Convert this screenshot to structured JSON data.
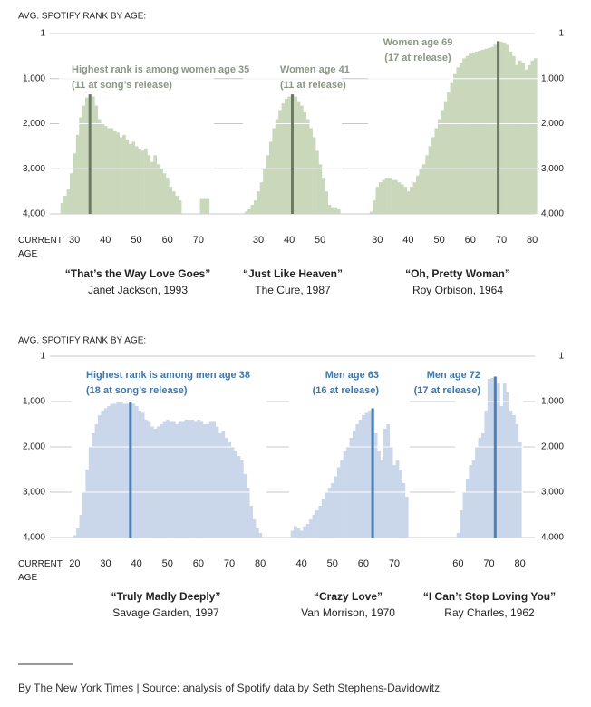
{
  "chart_data": [
    {
      "type": "bar",
      "y_label": "AVG. SPOTIFY RANK BY AGE:",
      "x_label": "CURRENT AGE",
      "ylim": [
        4000,
        1
      ],
      "yticks": [
        1,
        {
          "value": 1000,
          "label": "1,000"
        },
        {
          "value": 2000,
          "label": "2,000"
        },
        {
          "value": 3000,
          "label": "3,000"
        },
        {
          "value": 4000,
          "label": "4,000"
        }
      ],
      "color": "#c9d7bb",
      "highlight_color": "#6c7b63",
      "annotation_color": "#8b9684",
      "charts": [
        {
          "title": "“That’s the Way Love Goes”",
          "subtitle": "Janet Jackson, 1993",
          "annotation": [
            "Highest rank is among women age 35",
            "(11 at song’s release)"
          ],
          "highlight": 35,
          "xlim": [
            25,
            75
          ],
          "xticks": [
            30,
            40,
            50,
            60,
            70
          ],
          "x": [
            26,
            27,
            28,
            29,
            30,
            31,
            32,
            33,
            34,
            35,
            36,
            37,
            38,
            39,
            40,
            41,
            42,
            43,
            44,
            45,
            46,
            47,
            48,
            49,
            50,
            51,
            52,
            53,
            54,
            55,
            56,
            57,
            58,
            59,
            60,
            61,
            62,
            63,
            64,
            65,
            66,
            67,
            68,
            69,
            70,
            71,
            72,
            73
          ],
          "values": [
            3760,
            3600,
            3460,
            3100,
            2660,
            2250,
            1860,
            1600,
            1420,
            1350,
            1400,
            1600,
            1900,
            2000,
            2050,
            2100,
            2100,
            2150,
            2200,
            2300,
            2250,
            2350,
            2450,
            2400,
            2500,
            2550,
            2600,
            2550,
            2700,
            2850,
            2700,
            2900,
            3000,
            3100,
            3200,
            3400,
            3500,
            3600,
            3700,
            null,
            null,
            null,
            null,
            null,
            null,
            3650,
            3650,
            3650
          ]
        },
        {
          "title": "“Just Like Heaven”",
          "subtitle": "The Cure, 1987",
          "annotation": [
            "Women age 41",
            "(11 at release)"
          ],
          "highlight": 41,
          "xlim": [
            25,
            57
          ],
          "xticks": [
            30,
            40,
            50
          ],
          "x": [
            26,
            27,
            28,
            29,
            30,
            31,
            32,
            33,
            34,
            35,
            36,
            37,
            38,
            39,
            40,
            41,
            42,
            43,
            44,
            45,
            46,
            47,
            48,
            49,
            50,
            51,
            52,
            53,
            54,
            55,
            56
          ],
          "values": [
            3950,
            3900,
            3800,
            3700,
            3500,
            3300,
            3000,
            2700,
            2400,
            2100,
            1900,
            1700,
            1550,
            1450,
            1400,
            1350,
            1400,
            1500,
            1600,
            1750,
            1900,
            2100,
            2300,
            2600,
            2900,
            3200,
            3500,
            3800,
            3850,
            3850,
            3900
          ]
        },
        {
          "title": "“Oh, Pretty Woman”",
          "subtitle": "Roy Orbison, 1964",
          "annotation": [
            "Women age 69",
            "(17 at release)"
          ],
          "highlight": 69,
          "xlim": [
            27,
            82
          ],
          "xticks": [
            30,
            40,
            50,
            60,
            70,
            80
          ],
          "x": [
            28,
            29,
            30,
            31,
            32,
            33,
            34,
            35,
            36,
            37,
            38,
            39,
            40,
            41,
            42,
            43,
            44,
            45,
            46,
            47,
            48,
            49,
            50,
            51,
            52,
            53,
            54,
            55,
            56,
            57,
            58,
            59,
            60,
            61,
            62,
            63,
            64,
            65,
            66,
            67,
            68,
            69,
            70,
            71,
            72,
            73,
            74,
            75,
            76,
            77,
            78,
            79,
            80,
            81
          ],
          "values": [
            3950,
            3700,
            3400,
            3300,
            3250,
            3200,
            3200,
            3250,
            3250,
            3300,
            3350,
            3400,
            3500,
            3400,
            3300,
            3150,
            3000,
            2900,
            2700,
            2500,
            2300,
            2100,
            1900,
            1700,
            1500,
            1300,
            1100,
            900,
            750,
            650,
            550,
            500,
            450,
            420,
            400,
            380,
            360,
            340,
            320,
            300,
            250,
            170,
            180,
            200,
            250,
            400,
            500,
            700,
            600,
            650,
            800,
            700,
            600,
            550
          ]
        }
      ]
    },
    {
      "type": "bar",
      "y_label": "AVG. SPOTIFY RANK BY AGE:",
      "x_label": "CURRENT AGE",
      "ylim": [
        4000,
        1
      ],
      "yticks": [
        1,
        {
          "value": 1000,
          "label": "1,000"
        },
        {
          "value": 2000,
          "label": "2,000"
        },
        {
          "value": 3000,
          "label": "3,000"
        },
        {
          "value": 4000,
          "label": "4,000"
        }
      ],
      "color": "#cad6e9",
      "highlight_color": "#4c80b6",
      "annotation_color": "#3d76a8",
      "charts": [
        {
          "title": "“Truly Madly Deeply”",
          "subtitle": "Savage Garden, 1997",
          "annotation": [
            "Highest rank is among men age 38",
            "(18 at song’s release)"
          ],
          "highlight": 38,
          "xlim": [
            19,
            82
          ],
          "xticks": [
            20,
            30,
            40,
            50,
            60,
            70,
            80
          ],
          "x": [
            20,
            21,
            22,
            23,
            24,
            25,
            26,
            27,
            28,
            29,
            30,
            31,
            32,
            33,
            34,
            35,
            36,
            37,
            38,
            39,
            40,
            41,
            42,
            43,
            44,
            45,
            46,
            47,
            48,
            49,
            50,
            51,
            52,
            53,
            54,
            55,
            56,
            57,
            58,
            59,
            60,
            61,
            62,
            63,
            64,
            65,
            66,
            67,
            68,
            69,
            70,
            71,
            72,
            73,
            74,
            75,
            76,
            77,
            78,
            79,
            80
          ],
          "values": [
            3950,
            3800,
            3500,
            3000,
            2500,
            2000,
            1700,
            1500,
            1300,
            1200,
            1150,
            1100,
            1050,
            1050,
            1020,
            1020,
            1050,
            1050,
            1000,
            1050,
            1100,
            1200,
            1250,
            1400,
            1450,
            1550,
            1600,
            1550,
            1500,
            1450,
            1400,
            1450,
            1450,
            1500,
            1450,
            1450,
            1400,
            1400,
            1400,
            1450,
            1400,
            1450,
            1500,
            1500,
            1450,
            1450,
            1550,
            1700,
            1650,
            1800,
            1900,
            2000,
            2100,
            2200,
            2300,
            2600,
            2900,
            3300,
            3600,
            3800,
            3900
          ]
        },
        {
          "title": "“Crazy Love”",
          "subtitle": "Van Morrison, 1970",
          "annotation": [
            "Men age 63",
            "(16 at release)"
          ],
          "highlight": 63,
          "xlim": [
            36,
            75
          ],
          "xticks": [
            40,
            50,
            60,
            70
          ],
          "x": [
            37,
            38,
            39,
            40,
            41,
            42,
            43,
            44,
            45,
            46,
            47,
            48,
            49,
            50,
            51,
            52,
            53,
            54,
            55,
            56,
            57,
            58,
            59,
            60,
            61,
            62,
            63,
            64,
            65,
            66,
            67,
            68,
            69,
            70,
            71,
            72,
            73,
            74
          ],
          "values": [
            3850,
            3750,
            3800,
            3850,
            3750,
            3700,
            3600,
            3500,
            3400,
            3300,
            3150,
            3000,
            2900,
            2800,
            2650,
            2450,
            2300,
            2100,
            2000,
            1800,
            1650,
            1500,
            1400,
            1300,
            1250,
            1200,
            1150,
            1700,
            2100,
            2300,
            1600,
            1500,
            2000,
            2400,
            2300,
            2500,
            2800,
            3100
          ]
        },
        {
          "title": "“I Can’t Stop Loving You”",
          "subtitle": "Ray Charles, 1962",
          "annotation": [
            "Men age 72",
            "(17 at release)"
          ],
          "highlight": 72,
          "xlim": [
            59,
            81
          ],
          "xticks": [
            60,
            70,
            80
          ],
          "x": [
            60,
            61,
            62,
            63,
            64,
            65,
            66,
            67,
            68,
            69,
            70,
            71,
            72,
            73,
            74,
            75,
            76,
            77,
            78,
            79,
            80
          ],
          "values": [
            3900,
            3400,
            3000,
            2700,
            2400,
            2300,
            2000,
            1800,
            1700,
            1200,
            500,
            480,
            450,
            600,
            1100,
            600,
            800,
            1200,
            1300,
            1500,
            1900
          ]
        }
      ]
    }
  ],
  "footer": "By The New York Times | Source: analysis of Spotify data by Seth Stephens-Davidowitz"
}
